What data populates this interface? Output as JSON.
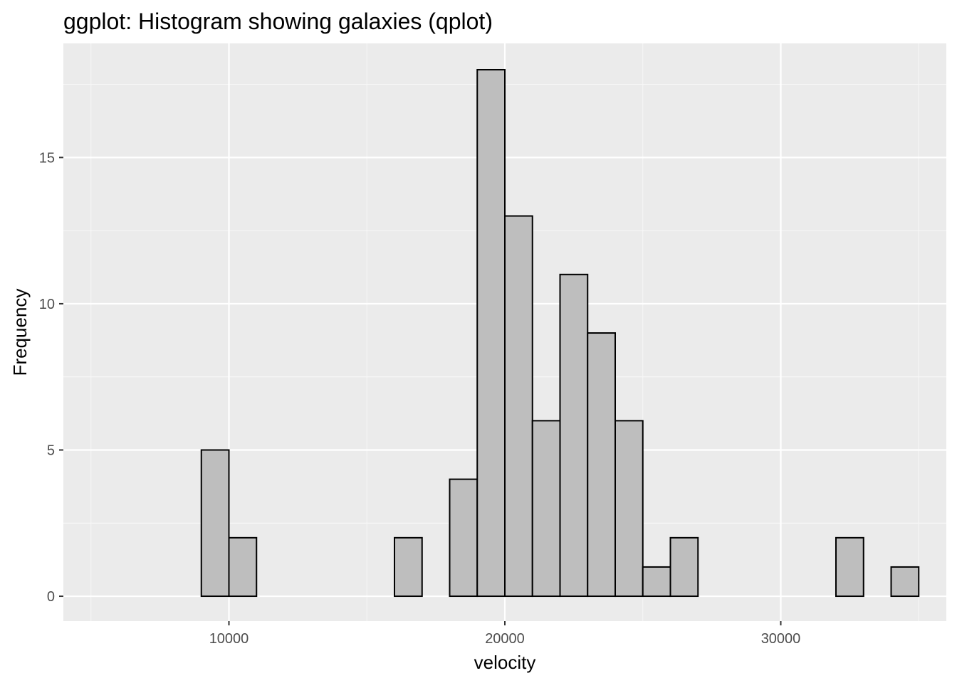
{
  "chart_data": {
    "type": "bar",
    "title": "ggplot: Histogram showing galaxies (qplot)",
    "xlabel": "velocity",
    "ylabel": "Frequency",
    "xlim": [
      4000,
      36000
    ],
    "ylim": [
      -0.85,
      18.9
    ],
    "x_ticks": [
      10000,
      20000,
      30000
    ],
    "y_ticks": [
      0,
      5,
      10,
      15
    ],
    "grid": true,
    "bin_width": 1000,
    "bins": [
      {
        "x0": 5000,
        "x1": 6000,
        "count": 0
      },
      {
        "x0": 6000,
        "x1": 7000,
        "count": 0
      },
      {
        "x0": 7000,
        "x1": 8000,
        "count": 0
      },
      {
        "x0": 8000,
        "x1": 9000,
        "count": 0
      },
      {
        "x0": 9000,
        "x1": 10000,
        "count": 5
      },
      {
        "x0": 10000,
        "x1": 11000,
        "count": 2
      },
      {
        "x0": 11000,
        "x1": 12000,
        "count": 0
      },
      {
        "x0": 12000,
        "x1": 13000,
        "count": 0
      },
      {
        "x0": 13000,
        "x1": 14000,
        "count": 0
      },
      {
        "x0": 14000,
        "x1": 15000,
        "count": 0
      },
      {
        "x0": 15000,
        "x1": 16000,
        "count": 0
      },
      {
        "x0": 16000,
        "x1": 17000,
        "count": 2
      },
      {
        "x0": 17000,
        "x1": 18000,
        "count": 0
      },
      {
        "x0": 18000,
        "x1": 19000,
        "count": 4
      },
      {
        "x0": 19000,
        "x1": 20000,
        "count": 18
      },
      {
        "x0": 20000,
        "x1": 21000,
        "count": 13
      },
      {
        "x0": 21000,
        "x1": 22000,
        "count": 6
      },
      {
        "x0": 22000,
        "x1": 23000,
        "count": 11
      },
      {
        "x0": 23000,
        "x1": 24000,
        "count": 9
      },
      {
        "x0": 24000,
        "x1": 25000,
        "count": 6
      },
      {
        "x0": 25000,
        "x1": 26000,
        "count": 1
      },
      {
        "x0": 26000,
        "x1": 27000,
        "count": 2
      },
      {
        "x0": 27000,
        "x1": 28000,
        "count": 0
      },
      {
        "x0": 28000,
        "x1": 29000,
        "count": 0
      },
      {
        "x0": 29000,
        "x1": 30000,
        "count": 0
      },
      {
        "x0": 30000,
        "x1": 31000,
        "count": 0
      },
      {
        "x0": 31000,
        "x1": 32000,
        "count": 0
      },
      {
        "x0": 32000,
        "x1": 33000,
        "count": 2
      },
      {
        "x0": 33000,
        "x1": 34000,
        "count": 0
      },
      {
        "x0": 34000,
        "x1": 35000,
        "count": 1
      }
    ],
    "colors": {
      "panel_background": "#ebebeb",
      "grid_major": "#ffffff",
      "grid_minor": "#f7f7f7",
      "bar_fill": "#bebebe",
      "bar_outline": "#000000",
      "tick_label": "#4d4d4d",
      "tick_mark": "#333333"
    }
  }
}
